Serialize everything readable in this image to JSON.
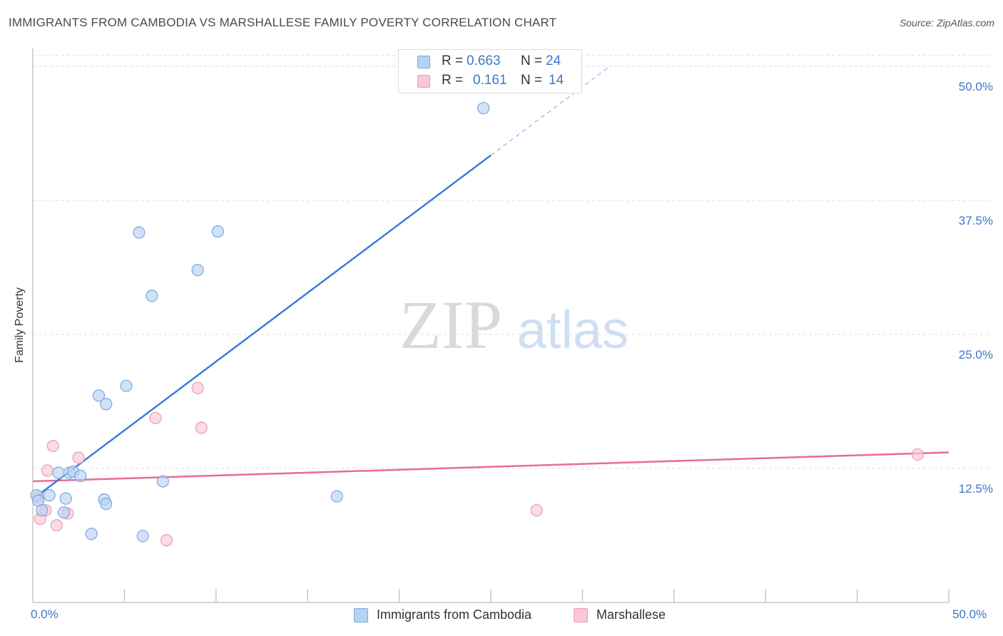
{
  "title": "IMMIGRANTS FROM CAMBODIA VS MARSHALLESE FAMILY POVERTY CORRELATION CHART",
  "source": "Source: ZipAtlas.com",
  "watermark": {
    "zip": "ZIP",
    "atlas": "atlas"
  },
  "legend_stats": [
    {
      "r_label": "R =",
      "r_value": "0.663",
      "n_label": "N =",
      "n_value": "24"
    },
    {
      "r_label": "R =",
      "r_value": "0.161",
      "n_label": "N =",
      "n_value": "14"
    }
  ],
  "colors": {
    "blue_fill": "#b8d2f2",
    "blue_stroke": "#7aa8e0",
    "blue_line": "#3b7dd8",
    "pink_fill": "#f8c8d8",
    "pink_stroke": "#ec9ab6",
    "pink_line": "#e96b98",
    "axis_text": "#3d78c8",
    "grid": "#dddddd"
  },
  "chart_data": {
    "type": "scatter",
    "title": "IMMIGRANTS FROM CAMBODIA VS MARSHALLESE FAMILY POVERTY CORRELATION CHART",
    "xlabel": "",
    "ylabel": "Family Poverty",
    "xlim": [
      0,
      50
    ],
    "ylim": [
      0,
      51
    ],
    "x_tick_labels": [
      "0.0%",
      "50.0%"
    ],
    "y_ticks": [
      12.5,
      25.0,
      37.5,
      50.0
    ],
    "y_tick_labels": [
      "12.5%",
      "25.0%",
      "37.5%",
      "50.0%"
    ],
    "legend_position": "top-center",
    "series": [
      {
        "name": "Immigrants from Cambodia",
        "points": [
          [
            0.2,
            10.0
          ],
          [
            0.3,
            9.5
          ],
          [
            0.5,
            8.6
          ],
          [
            0.9,
            10.0
          ],
          [
            1.4,
            12.1
          ],
          [
            1.7,
            8.4
          ],
          [
            1.8,
            9.7
          ],
          [
            2.0,
            12.1
          ],
          [
            2.2,
            12.2
          ],
          [
            2.6,
            11.8
          ],
          [
            3.2,
            6.4
          ],
          [
            3.6,
            19.3
          ],
          [
            3.9,
            9.6
          ],
          [
            4.0,
            9.2
          ],
          [
            4.0,
            18.5
          ],
          [
            5.1,
            20.2
          ],
          [
            5.8,
            34.5
          ],
          [
            6.0,
            6.2
          ],
          [
            6.5,
            28.6
          ],
          [
            7.1,
            11.3
          ],
          [
            9.0,
            31.0
          ],
          [
            10.1,
            34.6
          ],
          [
            16.6,
            9.9
          ],
          [
            24.6,
            46.1
          ]
        ],
        "trend": {
          "x": [
            0.2,
            25.0
          ],
          "y": [
            9.9,
            41.7
          ],
          "dashed_x": [
            25.0,
            31.5
          ],
          "dashed_y": [
            41.7,
            50.0
          ]
        }
      },
      {
        "name": "Marshallese",
        "points": [
          [
            0.3,
            9.8
          ],
          [
            0.4,
            7.8
          ],
          [
            0.7,
            8.6
          ],
          [
            0.8,
            12.3
          ],
          [
            1.1,
            14.6
          ],
          [
            1.3,
            7.2
          ],
          [
            1.9,
            8.3
          ],
          [
            2.5,
            13.5
          ],
          [
            6.7,
            17.2
          ],
          [
            7.3,
            5.8
          ],
          [
            9.0,
            20.0
          ],
          [
            9.2,
            16.3
          ],
          [
            27.5,
            8.6
          ],
          [
            48.3,
            13.8
          ]
        ],
        "trend": {
          "x": [
            0.0,
            50.0
          ],
          "y": [
            11.3,
            14.0
          ]
        }
      }
    ]
  }
}
